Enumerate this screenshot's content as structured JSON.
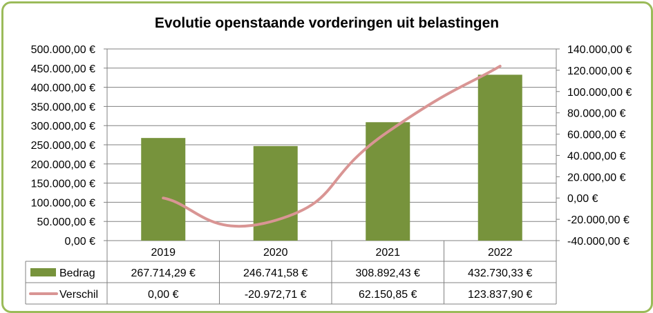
{
  "chart_data": {
    "type": "bar",
    "title": "Evolutie openstaande vorderingen uit belastingen",
    "categories": [
      "2019",
      "2020",
      "2021",
      "2022"
    ],
    "series": [
      {
        "name": "Bedrag",
        "type": "bar",
        "axis": "left",
        "color": "#77933c",
        "values": [
          267714.29,
          246741.58,
          308892.43,
          432730.33
        ],
        "labels": [
          "267.714,29 €",
          "246.741,58 €",
          "308.892,43 €",
          "432.730,33 €"
        ]
      },
      {
        "name": "Verschil",
        "type": "line",
        "axis": "right",
        "color": "#d99594",
        "values": [
          0,
          -20972.71,
          62150.85,
          123837.9
        ],
        "labels": [
          "0,00 €",
          "-20.972,71 €",
          "62.150,85 €",
          "123.837,90 €"
        ]
      }
    ],
    "y_left": {
      "ylim": [
        0,
        500000
      ],
      "ticks": [
        0,
        50000,
        100000,
        150000,
        200000,
        250000,
        300000,
        350000,
        400000,
        450000,
        500000
      ],
      "tick_labels": [
        "0,00 €",
        "50.000,00 €",
        "100.000,00 €",
        "150.000,00 €",
        "200.000,00 €",
        "250.000,00 €",
        "300.000,00 €",
        "350.000,00 €",
        "400.000,00 €",
        "450.000,00 €",
        "500.000,00 €"
      ]
    },
    "y_right": {
      "ylim": [
        -40000,
        140000
      ],
      "ticks": [
        -40000,
        -20000,
        0,
        20000,
        40000,
        60000,
        80000,
        100000,
        120000,
        140000
      ],
      "tick_labels": [
        "-40.000,00 €",
        "-20.000,00 €",
        "0,00 €",
        "20.000,00 €",
        "40.000,00 €",
        "60.000,00 €",
        "80.000,00 €",
        "100.000,00 €",
        "120.000,00 €",
        "140.000,00 €"
      ]
    },
    "grid": true,
    "legend": "data-table"
  }
}
